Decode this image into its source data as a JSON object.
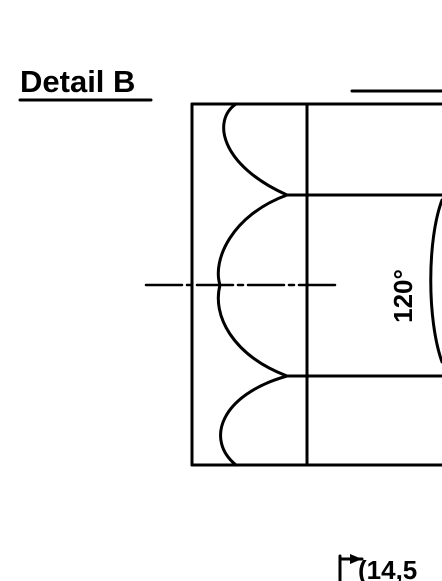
{
  "detail": {
    "title": "Detail B",
    "angle_label": "120°",
    "dimension_label": "(14,5"
  },
  "colors": {
    "ink": "#000000",
    "paper": "#ffffff"
  }
}
